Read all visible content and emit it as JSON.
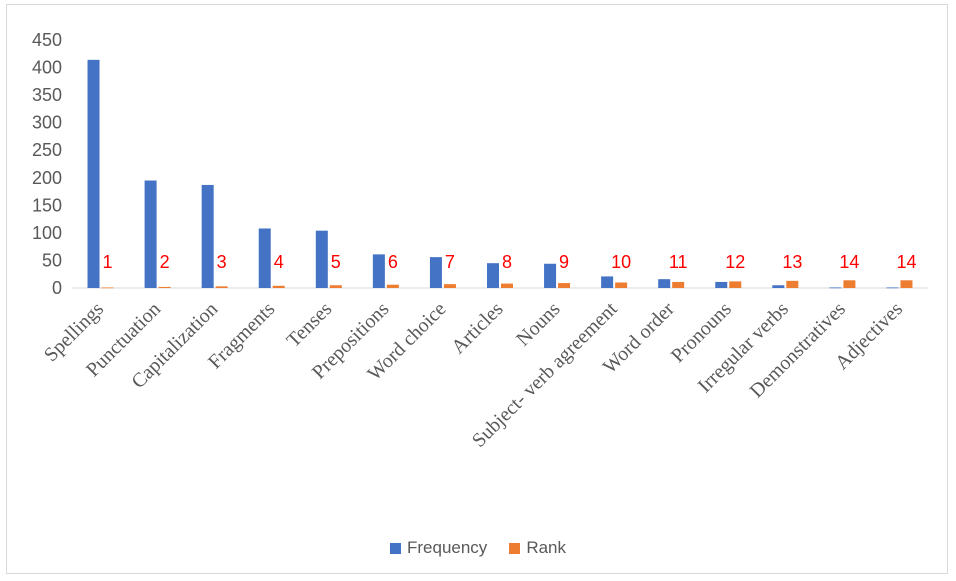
{
  "chart_data": {
    "type": "bar",
    "categories": [
      "Spellings",
      "Punctuation",
      "Capitalization",
      "Fragments",
      "Tenses",
      "Prepositions",
      "Word choice",
      "Articles",
      "Nouns",
      "Subject- verb agreement",
      "Word order",
      "Pronouns",
      "Irregular verbs",
      "Demonstratives",
      "Adjectives"
    ],
    "series": [
      {
        "name": "Frequency",
        "color": "#4472c4",
        "values": [
          414,
          195,
          187,
          108,
          104,
          61,
          56,
          45,
          44,
          21,
          16,
          11,
          5,
          1,
          1
        ]
      },
      {
        "name": "Rank",
        "color": "#ed7d31",
        "values": [
          1,
          2,
          3,
          4,
          5,
          6,
          7,
          8,
          9,
          10,
          11,
          12,
          13,
          14,
          14
        ]
      }
    ],
    "data_labels": [
      "1",
      "2",
      "3",
      "4",
      "5",
      "6",
      "7",
      "8",
      "9",
      "10",
      "11",
      "12",
      "13",
      "14",
      "14"
    ],
    "data_label_color": "#ff0000",
    "ylim": [
      0,
      450
    ],
    "yticks": [
      0,
      50,
      100,
      150,
      200,
      250,
      300,
      350,
      400,
      450
    ],
    "grid": false,
    "legend_position": "bottom",
    "title": "",
    "xlabel": "",
    "ylabel": ""
  }
}
